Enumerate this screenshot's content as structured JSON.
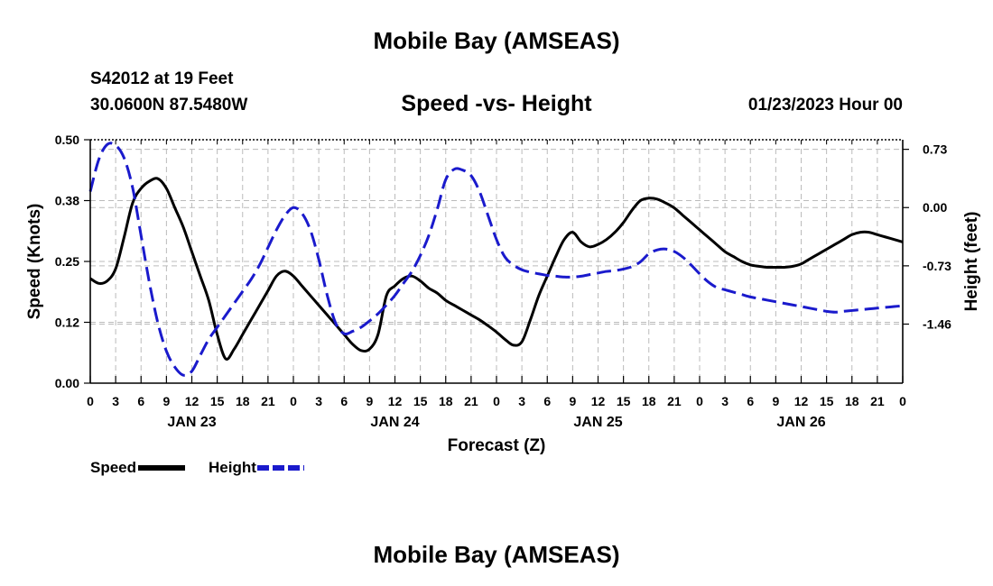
{
  "header": {
    "title": "Mobile Bay (AMSEAS)",
    "station": "S42012 at 19 Feet",
    "coords": "30.0600N  87.5480W",
    "subtitle": "Speed -vs- Height",
    "datetime": "01/23/2023 Hour 00"
  },
  "footer": {
    "title": "Mobile Bay (AMSEAS)"
  },
  "colors": {
    "speed": "#000000",
    "height": "#1a1acc",
    "grid": "#bbbbbb"
  },
  "chart_data": {
    "type": "line",
    "xlabel": "Forecast (Z)",
    "ylabel_left": "Speed (Knots)",
    "ylabel_right": "Height (feet)",
    "x_range_hours": [
      0,
      96
    ],
    "x_tick_step_hours": 3,
    "x_tick_labels": [
      "0",
      "3",
      "6",
      "9",
      "12",
      "15",
      "18",
      "21",
      "0",
      "3",
      "6",
      "9",
      "12",
      "15",
      "18",
      "21",
      "0",
      "3",
      "6",
      "9",
      "12",
      "15",
      "18",
      "21",
      "0",
      "3",
      "6",
      "9",
      "12",
      "15",
      "18",
      "21",
      "0"
    ],
    "day_labels": [
      {
        "hour": 12,
        "label": "JAN 23"
      },
      {
        "hour": 36,
        "label": "JAN 24"
      },
      {
        "hour": 60,
        "label": "JAN 25"
      },
      {
        "hour": 84,
        "label": "JAN 26"
      }
    ],
    "y_left": {
      "range": [
        0,
        0.5
      ],
      "ticks": [
        0,
        0.125,
        0.25,
        0.375,
        0.5
      ],
      "tick_labels": [
        "0.00",
        "0.12",
        "0.25",
        "0.38",
        "0.50"
      ]
    },
    "y_right": {
      "range": [
        -2.2,
        0.85
      ],
      "ticks": [
        -1.46,
        -0.73,
        0.0,
        0.73
      ],
      "tick_labels": [
        "-1.46",
        "-0.73",
        "0.00",
        "0.73"
      ]
    },
    "legend": [
      {
        "name": "Speed",
        "style": "solid"
      },
      {
        "name": "Height",
        "style": "dashed"
      }
    ],
    "series": [
      {
        "name": "Speed",
        "axis": "left",
        "style": "solid",
        "x": [
          0,
          1,
          2,
          3,
          4,
          5,
          6,
          7,
          8,
          9,
          10,
          11,
          12,
          13,
          14,
          15,
          16,
          17,
          18,
          19,
          20,
          21,
          22,
          23,
          24,
          25,
          26,
          27,
          28,
          29,
          30,
          31,
          32,
          33,
          34,
          35,
          36,
          37,
          38,
          39,
          40,
          41,
          42,
          43,
          44,
          45,
          46,
          47,
          48,
          49,
          50,
          51,
          52,
          53,
          54,
          55,
          56,
          57,
          58,
          59,
          60,
          61,
          62,
          63,
          64,
          65,
          66,
          67,
          68,
          69,
          70,
          71,
          72,
          73,
          74,
          75,
          76,
          77,
          78,
          79,
          80,
          81,
          82,
          83,
          84,
          85,
          86,
          87,
          88,
          89,
          90,
          91,
          92,
          93,
          94,
          95,
          96
        ],
        "values": [
          0.215,
          0.205,
          0.21,
          0.235,
          0.3,
          0.37,
          0.4,
          0.415,
          0.42,
          0.4,
          0.36,
          0.32,
          0.27,
          0.22,
          0.17,
          0.1,
          0.05,
          0.07,
          0.1,
          0.13,
          0.16,
          0.19,
          0.22,
          0.23,
          0.22,
          0.2,
          0.18,
          0.16,
          0.14,
          0.12,
          0.1,
          0.08,
          0.067,
          0.07,
          0.1,
          0.18,
          0.2,
          0.215,
          0.22,
          0.21,
          0.195,
          0.185,
          0.17,
          0.16,
          0.15,
          0.14,
          0.13,
          0.118,
          0.105,
          0.09,
          0.078,
          0.085,
          0.13,
          0.18,
          0.22,
          0.26,
          0.295,
          0.31,
          0.29,
          0.28,
          0.285,
          0.295,
          0.31,
          0.33,
          0.355,
          0.375,
          0.38,
          0.378,
          0.37,
          0.36,
          0.345,
          0.33,
          0.315,
          0.3,
          0.285,
          0.27,
          0.26,
          0.25,
          0.243,
          0.24,
          0.238,
          0.238,
          0.238,
          0.24,
          0.245,
          0.255,
          0.265,
          0.275,
          0.285,
          0.295,
          0.305,
          0.31,
          0.31,
          0.305,
          0.3,
          0.295,
          0.29
        ]
      },
      {
        "name": "Height",
        "axis": "right",
        "style": "dashed",
        "x": [
          0,
          1,
          2,
          3,
          4,
          5,
          6,
          7,
          8,
          9,
          10,
          11,
          12,
          13,
          14,
          15,
          16,
          17,
          18,
          19,
          20,
          21,
          22,
          23,
          24,
          25,
          26,
          27,
          28,
          29,
          30,
          31,
          32,
          33,
          34,
          35,
          36,
          37,
          38,
          39,
          40,
          41,
          42,
          43,
          44,
          45,
          46,
          47,
          48,
          49,
          50,
          51,
          52,
          53,
          54,
          55,
          56,
          57,
          58,
          59,
          60,
          61,
          62,
          63,
          64,
          65,
          66,
          67,
          68,
          69,
          70,
          71,
          72,
          73,
          74,
          75,
          76,
          77,
          78,
          79,
          80,
          81,
          82,
          83,
          84,
          85,
          86,
          87,
          88,
          89,
          90,
          91,
          92,
          93,
          94,
          95,
          96
        ],
        "values": [
          0.2,
          0.6,
          0.79,
          0.78,
          0.62,
          0.25,
          -0.35,
          -0.95,
          -1.45,
          -1.8,
          -2.0,
          -2.1,
          -2.05,
          -1.85,
          -1.65,
          -1.5,
          -1.35,
          -1.2,
          -1.05,
          -0.9,
          -0.72,
          -0.5,
          -0.28,
          -0.1,
          0.0,
          -0.07,
          -0.28,
          -0.65,
          -1.1,
          -1.45,
          -1.58,
          -1.55,
          -1.5,
          -1.42,
          -1.33,
          -1.22,
          -1.1,
          -0.95,
          -0.8,
          -0.6,
          -0.35,
          -0.02,
          0.35,
          0.48,
          0.47,
          0.4,
          0.2,
          -0.1,
          -0.4,
          -0.62,
          -0.72,
          -0.78,
          -0.81,
          -0.83,
          -0.85,
          -0.86,
          -0.87,
          -0.87,
          -0.86,
          -0.84,
          -0.82,
          -0.8,
          -0.79,
          -0.77,
          -0.74,
          -0.68,
          -0.58,
          -0.53,
          -0.52,
          -0.55,
          -0.62,
          -0.72,
          -0.83,
          -0.93,
          -1.0,
          -1.03,
          -1.06,
          -1.09,
          -1.12,
          -1.14,
          -1.16,
          -1.18,
          -1.2,
          -1.22,
          -1.24,
          -1.26,
          -1.28,
          -1.3,
          -1.31,
          -1.3,
          -1.29,
          -1.28,
          -1.27,
          -1.26,
          -1.25,
          -1.24,
          -1.23
        ]
      }
    ]
  }
}
